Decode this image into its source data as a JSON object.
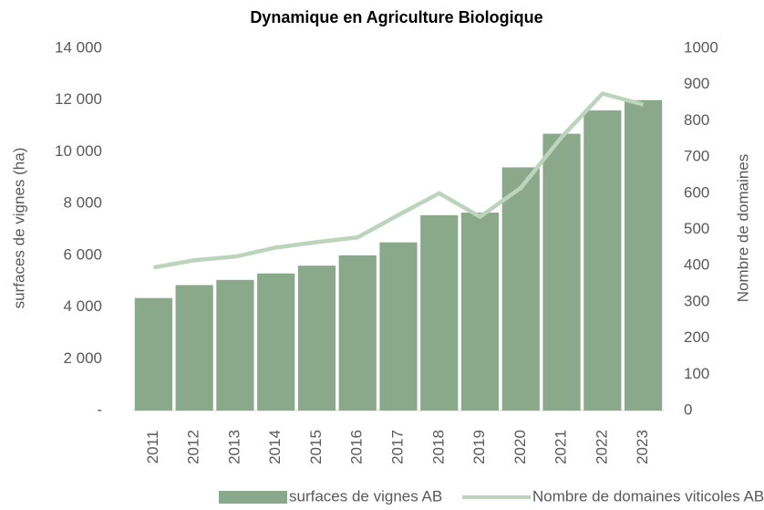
{
  "chart_data": {
    "type": "bar",
    "title": "Dynamique en Agriculture Biologique",
    "ylabel": "surfaces de vignes (ha)",
    "y2label": "Nombre de domaines",
    "categories": [
      "2011",
      "2012",
      "2013",
      "2014",
      "2015",
      "2016",
      "2017",
      "2018",
      "2019",
      "2020",
      "2021",
      "2022",
      "2023"
    ],
    "series": [
      {
        "name": "surfaces de vignes AB",
        "type": "bar",
        "color": "#8aa88a",
        "values": [
          4350,
          4850,
          5050,
          5300,
          5600,
          6000,
          6500,
          7550,
          7650,
          9400,
          10700,
          11600,
          12000
        ]
      },
      {
        "name": "Nombre de domaines viticoles AB",
        "type": "line",
        "axis": "y2",
        "color": "#bcd3bc",
        "values": [
          395,
          415,
          425,
          450,
          465,
          478,
          540,
          600,
          535,
          615,
          755,
          875,
          845
        ]
      }
    ],
    "ylim": [
      0,
      14000
    ],
    "yticks": [
      {
        "value": 0,
        "label": "-"
      },
      {
        "value": 2000,
        "label": "2 000"
      },
      {
        "value": 4000,
        "label": "4 000"
      },
      {
        "value": 6000,
        "label": "6 000"
      },
      {
        "value": 8000,
        "label": "8 000"
      },
      {
        "value": 10000,
        "label": "10 000"
      },
      {
        "value": 12000,
        "label": "12 000"
      },
      {
        "value": 14000,
        "label": "14 000"
      }
    ],
    "y2lim": [
      0,
      1000
    ],
    "y2ticks": [
      0,
      100,
      200,
      300,
      400,
      500,
      600,
      700,
      800,
      900,
      1000
    ],
    "grid": false,
    "legend": "bottom"
  }
}
